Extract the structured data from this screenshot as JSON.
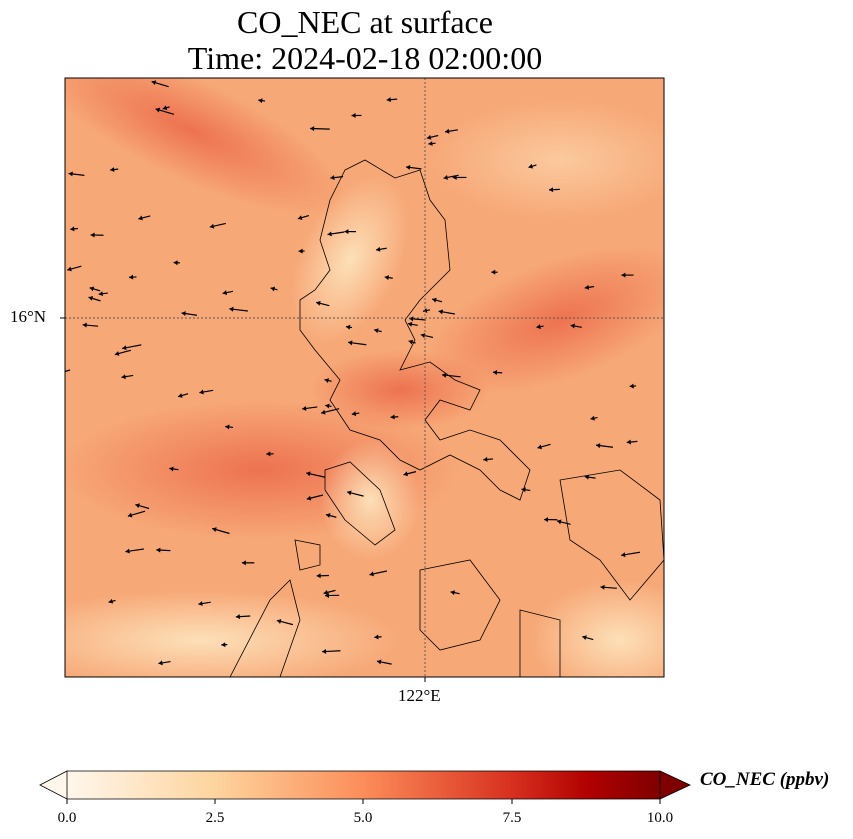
{
  "title": {
    "line1": "CO_NEC at surface",
    "line2": "Time: 2024-02-18 02:00:00"
  },
  "axes": {
    "lat_label": "16°N",
    "lon_label": "122°E"
  },
  "colorbar": {
    "label": "CO_NEC (ppbv)",
    "ticks": [
      "0.0",
      "2.5",
      "5.0",
      "7.5",
      "10.0"
    ],
    "range": [
      0,
      10
    ],
    "colormap": "OrRd",
    "colors": [
      "#fff7ec",
      "#fdd49e",
      "#fc8d59",
      "#d7301f",
      "#7f0000"
    ],
    "extend": "both"
  },
  "colors": {
    "field_base": "#f9b07e",
    "field_high": "#ef7650",
    "field_low": "#fdd0a0"
  }
}
